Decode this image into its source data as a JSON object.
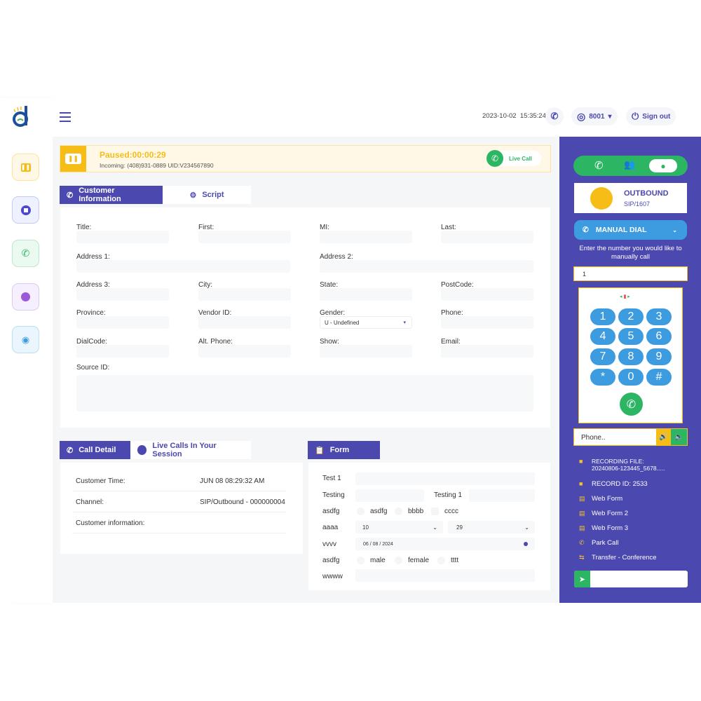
{
  "header": {
    "datetime": "2023-10-02  15:35:24",
    "user": "8001",
    "signout": "Sign out"
  },
  "status": {
    "title": "Paused:00:00:29",
    "subtitle": "Incoming: (408)931-0889 UID:V234567890",
    "live_call": "Live Call",
    "colors": {
      "paused": "#f6bd16",
      "live": "#2cb664"
    }
  },
  "rail": {
    "items": [
      "pause",
      "stop",
      "call-missed",
      "clock",
      "eye-off"
    ]
  },
  "customer": {
    "tabs": [
      "Customer Information",
      "Script"
    ],
    "fields": [
      {
        "label": "Title:",
        "value": ""
      },
      {
        "label": "First:",
        "value": ""
      },
      {
        "label": "MI:",
        "value": ""
      },
      {
        "label": "Last:",
        "value": ""
      },
      {
        "label": "Address 1:",
        "value": ""
      },
      {
        "label": "Address 2:",
        "value": ""
      },
      {
        "label": "Address 3:",
        "value": ""
      },
      {
        "label": "City:",
        "value": ""
      },
      {
        "label": "State:",
        "value": ""
      },
      {
        "label": "PostCode:",
        "value": ""
      },
      {
        "label": "Province:",
        "value": ""
      },
      {
        "label": "Vendor ID:",
        "value": ""
      },
      {
        "label": "Gender:",
        "value": "U - Undefined"
      },
      {
        "label": "Phone:",
        "value": ""
      },
      {
        "label": "DialCode:",
        "value": ""
      },
      {
        "label": "Alt. Phone:",
        "value": ""
      },
      {
        "label": "Show:",
        "value": ""
      },
      {
        "label": "Email:",
        "value": ""
      },
      {
        "label": "Source ID:",
        "value": ""
      }
    ]
  },
  "call_detail": {
    "tabs": [
      "Call Detail",
      "Live Calls In Your Session"
    ],
    "rows": [
      {
        "label": "Customer Time:",
        "value": "JUN 08 08:29:32 AM"
      },
      {
        "label": "Channel:",
        "value": "SIP/Outbound - 000000004"
      },
      {
        "label": "Customer information:",
        "value": ""
      }
    ]
  },
  "form": {
    "tab": "Form",
    "test1": "Test 1",
    "testing": "Testing",
    "testing1": "Testing 1",
    "radio1": {
      "label": "asdfg",
      "options": [
        "asdfg",
        "bbbb",
        "cccc"
      ]
    },
    "select": {
      "label": "aaaa",
      "a": "10",
      "b": "29"
    },
    "date": {
      "label": "vvvv",
      "value": "06 / 08 / 2024"
    },
    "radio2": {
      "label": "asdfg",
      "options": [
        "male",
        "female",
        "tttt"
      ]
    },
    "wwww": "wwww"
  },
  "panel": {
    "mode": "OUTBOUND",
    "sip": "SIP/1607",
    "manual_dial": "MANUAL DIAL",
    "prompt": "Enter the number you would like to manually call",
    "number": "1",
    "keys": [
      "1",
      "2",
      "3",
      "4",
      "5",
      "6",
      "7",
      "8",
      "9",
      "*",
      "0",
      "#"
    ],
    "phone_placeholder": "Phone..",
    "recording_label": "RECORDING FILE:",
    "recording_file": "20240806-123445_5678.....",
    "record_id": "RECORD ID: 2533",
    "links": [
      "Web Form",
      "Web Form 2",
      "Web Form 3",
      "Park Call",
      "Transfer - Conference"
    ],
    "colors": {
      "bg": "#4b48b0",
      "green": "#2cb664",
      "blue": "#3d9be0",
      "yellow": "#f6bd16"
    }
  }
}
